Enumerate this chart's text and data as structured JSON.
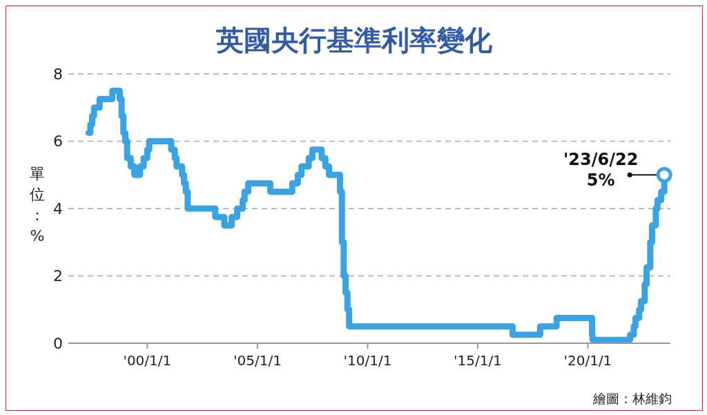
{
  "chart_data": {
    "type": "step",
    "title": "英國央行基準利率變化",
    "ylabel": "單位：%",
    "x": [
      "1997-05",
      "1997-06",
      "1997-07",
      "1997-08",
      "1997-11",
      "1998-06",
      "1998-10",
      "1998-11",
      "1998-12",
      "1999-01",
      "1999-02",
      "1999-04",
      "1999-06",
      "1999-09",
      "1999-11",
      "2000-01",
      "2000-02",
      "2001-02",
      "2001-04",
      "2001-05",
      "2001-08",
      "2001-09",
      "2001-10",
      "2001-11",
      "2003-02",
      "2003-07",
      "2003-11",
      "2004-02",
      "2004-05",
      "2004-06",
      "2004-08",
      "2005-08",
      "2006-08",
      "2006-11",
      "2007-01",
      "2007-05",
      "2007-07",
      "2007-12",
      "2008-02",
      "2008-04",
      "2008-10",
      "2008-11",
      "2008-12",
      "2009-01",
      "2009-02",
      "2009-03",
      "2016-08",
      "2017-11",
      "2018-08",
      "2020-03-11",
      "2020-03-19",
      "2021-12",
      "2022-02",
      "2022-03",
      "2022-05",
      "2022-06",
      "2022-08",
      "2022-09",
      "2022-11",
      "2022-12",
      "2023-02",
      "2023-03",
      "2023-05",
      "2023-06-22"
    ],
    "series": [
      {
        "color": "#3aa3e3",
        "values": [
          6.25,
          6.5,
          6.75,
          7,
          7.25,
          7.5,
          7.25,
          6.75,
          6.25,
          6,
          5.5,
          5.25,
          5,
          5.25,
          5.5,
          5.75,
          6,
          5.75,
          5.5,
          5.25,
          5,
          4.75,
          4.5,
          4,
          3.75,
          3.5,
          3.75,
          4,
          4.25,
          4.5,
          4.75,
          4.5,
          4.75,
          5,
          5.25,
          5.5,
          5.75,
          5.5,
          5.25,
          5,
          4.5,
          3,
          2,
          1.5,
          1,
          0.5,
          0.25,
          0.5,
          0.75,
          0.25,
          0.1,
          0.25,
          0.5,
          0.75,
          1,
          1.25,
          1.75,
          2.25,
          3,
          3.5,
          4,
          4.25,
          4.5,
          5
        ]
      }
    ],
    "xlim": [
      "1996-06",
      "2023-10"
    ],
    "xticks": [
      {
        "value": "2000-01-01",
        "label": "'00/1/1"
      },
      {
        "value": "2005-01-01",
        "label": "'05/1/1"
      },
      {
        "value": "2010-01-01",
        "label": "'10/1/1"
      },
      {
        "value": "2015-01-01",
        "label": "'15/1/1"
      },
      {
        "value": "2020-01-01",
        "label": "'20/1/1"
      }
    ],
    "ylim": [
      0,
      8
    ],
    "yticks": [
      0,
      2,
      4,
      6,
      8
    ],
    "grid": "y",
    "marker": "none",
    "line_style": "solid",
    "annotations": [
      {
        "text": "'23/6/22\n5%",
        "x": "2023-06-22",
        "y": 5
      },
      "繪圖：林維鈞"
    ]
  }
}
